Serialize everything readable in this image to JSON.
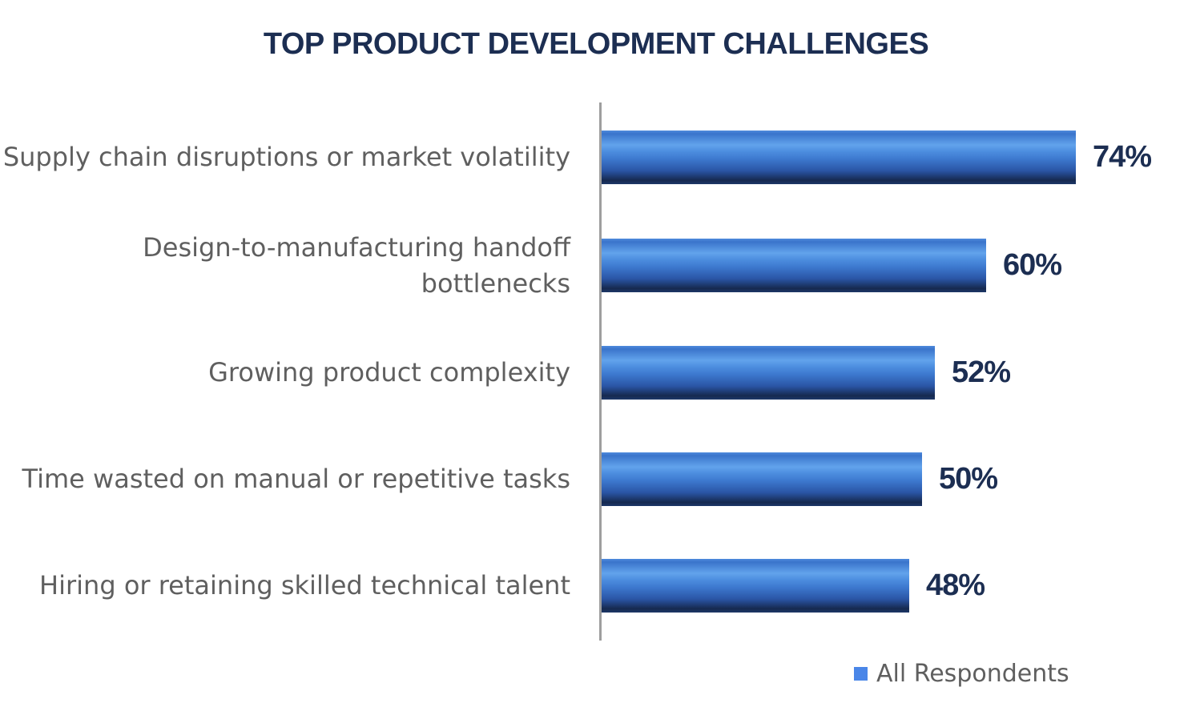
{
  "title": "TOP PRODUCT DEVELOPMENT CHALLENGES",
  "legend": {
    "label": "All Respondents"
  },
  "colors": {
    "title-color": "#1c2e52",
    "value-color": "#1c2e52",
    "label-color": "#5f5f5f",
    "axis-color": "#9e9e9e",
    "legend-swatch": "#4a86e8",
    "bar-gradient": "linear-gradient(180deg, #4f8bdd 0%, #3a74cb 6%, #62a3ec 27%, #4e8fe0 38%, #3e7ad0 52%, #2a55a5 75%, #16294f 93%, #1d3868 100%)"
  },
  "chart_data": {
    "type": "bar",
    "orientation": "horizontal",
    "title": "TOP PRODUCT DEVELOPMENT CHALLENGES",
    "categories": [
      "Supply chain disruptions or market volatility",
      "Design-to-manufacturing handoff bottlenecks",
      "Growing product complexity",
      "Time wasted on manual or repetitive tasks",
      "Hiring or retaining skilled technical talent"
    ],
    "values": [
      74,
      60,
      52,
      50,
      48
    ],
    "value_labels": [
      "74%",
      "60%",
      "52%",
      "50%",
      "48%"
    ],
    "series": [
      {
        "name": "All Respondents",
        "values": [
          74,
          60,
          52,
          50,
          48
        ]
      }
    ],
    "xlabel": "",
    "ylabel": "",
    "value_axis_visible": false,
    "grid": false,
    "legend_position": "bottom-right",
    "data_labels": "outside-end"
  }
}
